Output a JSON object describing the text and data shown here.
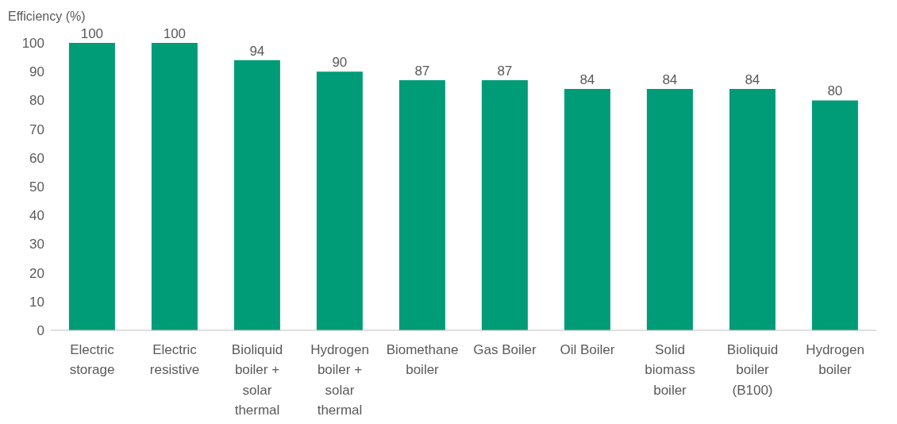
{
  "chart_data": {
    "type": "bar",
    "ylabel": "Efficiency (%)",
    "categories": [
      "Electric storage",
      "Electric resistive",
      "Bioliquid boiler + solar thermal",
      "Hydrogen boiler + solar thermal",
      "Biomethane boiler",
      "Gas Boiler",
      "Oil Boiler",
      "Solid biomass boiler",
      "Bioliquid boiler (B100)",
      "Hydrogen boiler"
    ],
    "values": [
      100,
      100,
      94,
      90,
      87,
      87,
      84,
      84,
      84,
      80
    ],
    "color": "#009b77",
    "ylim": [
      0,
      100
    ],
    "yticks": [
      0,
      10,
      20,
      30,
      40,
      50,
      60,
      70,
      80,
      90,
      100
    ],
    "data_labels": true
  }
}
